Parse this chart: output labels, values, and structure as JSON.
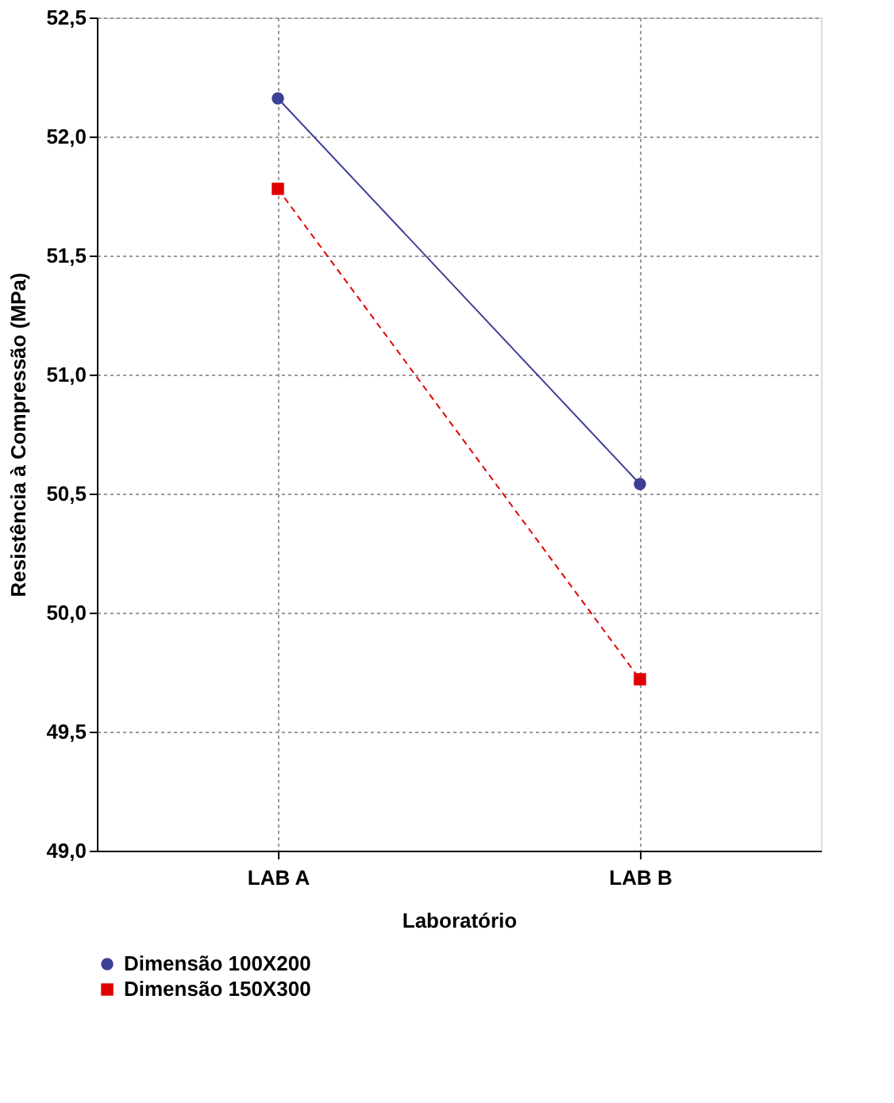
{
  "chart_data": {
    "type": "line",
    "xlabel": "Laboratório",
    "ylabel": "Resistência à Compressão (MPa)",
    "categories": [
      "LAB A",
      "LAB B"
    ],
    "series": [
      {
        "name": "Dimensão 100X200",
        "color": "#3c3f96",
        "values": [
          52.16,
          50.54
        ],
        "marker": "circle",
        "line_style": "solid"
      },
      {
        "name": "Dimensão 150X300",
        "color": "#e00000",
        "values": [
          51.78,
          49.72
        ],
        "marker": "square",
        "line_style": "dashed"
      }
    ],
    "ylim": [
      49.0,
      52.5
    ],
    "yticks": [
      {
        "value": 49.0,
        "label": "49,0"
      },
      {
        "value": 49.5,
        "label": "49,5"
      },
      {
        "value": 50.0,
        "label": "50,0"
      },
      {
        "value": 50.5,
        "label": "50,5"
      },
      {
        "value": 51.0,
        "label": "51,0"
      },
      {
        "value": 51.5,
        "label": "51,5"
      },
      {
        "value": 52.0,
        "label": "52,0"
      },
      {
        "value": 52.5,
        "label": "52,5"
      }
    ],
    "grid": true,
    "legend": "bottom left"
  }
}
